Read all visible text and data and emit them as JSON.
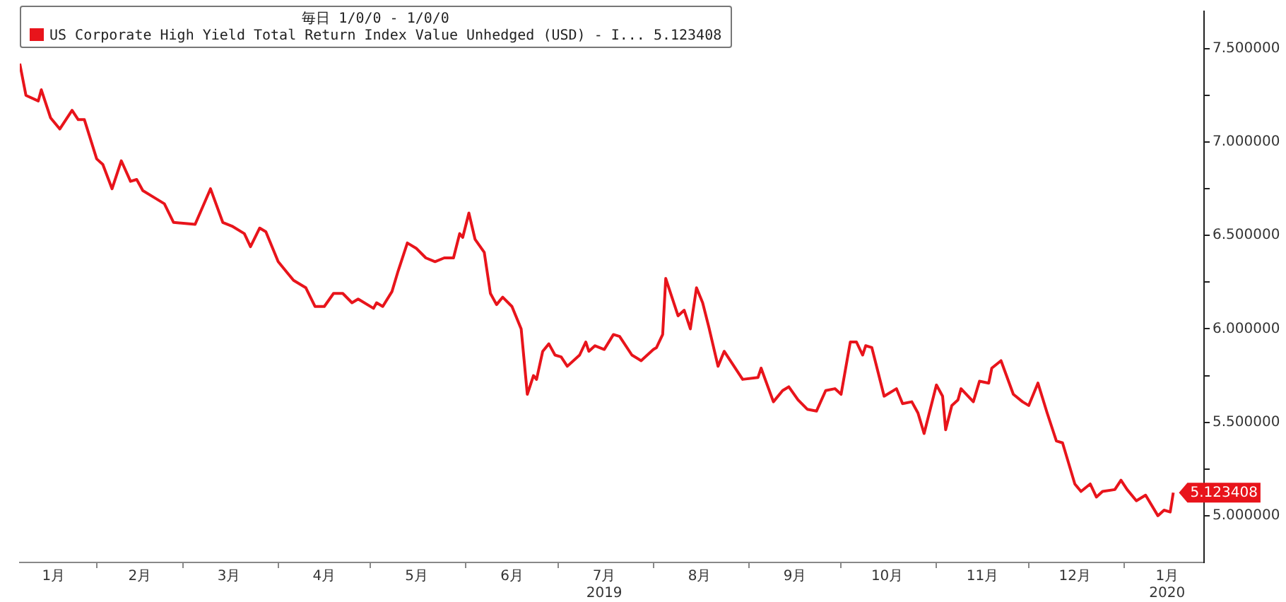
{
  "chart_data": {
    "type": "line",
    "legend_title": "毎日 1/0/0 - 1/0/0",
    "legend": "top left",
    "grid": false,
    "marker": "none",
    "line_style": "solid",
    "series": [
      {
        "name": "US Corporate High Yield Total Return Index Value Unhedged (USD) - I... 5.123408",
        "color": "#e8141b",
        "x": [
          "2019-01-07",
          "2019-01-09",
          "2019-01-13",
          "2019-01-14",
          "2019-01-17",
          "2019-01-20",
          "2019-01-24",
          "2019-01-26",
          "2019-01-28",
          "2019-02-01",
          "2019-02-03",
          "2019-02-06",
          "2019-02-09",
          "2019-02-12",
          "2019-02-14",
          "2019-02-16",
          "2019-02-20",
          "2019-02-23",
          "2019-02-26",
          "2019-03-05",
          "2019-03-10",
          "2019-03-14",
          "2019-03-17",
          "2019-03-21",
          "2019-03-23",
          "2019-03-26",
          "2019-03-28",
          "2019-04-01",
          "2019-04-04",
          "2019-04-06",
          "2019-04-10",
          "2019-04-13",
          "2019-04-16",
          "2019-04-19",
          "2019-04-22",
          "2019-04-25",
          "2019-04-27",
          "2019-05-02",
          "2019-05-03",
          "2019-05-05",
          "2019-05-08",
          "2019-05-10",
          "2019-05-13",
          "2019-05-16",
          "2019-05-19",
          "2019-05-22",
          "2019-05-25",
          "2019-05-28",
          "2019-05-30",
          "2019-05-31",
          "2019-06-02",
          "2019-06-04",
          "2019-06-07",
          "2019-06-09",
          "2019-06-11",
          "2019-06-13",
          "2019-06-16",
          "2019-06-19",
          "2019-06-21",
          "2019-06-23",
          "2019-06-24",
          "2019-06-26",
          "2019-06-28",
          "2019-06-30",
          "2019-07-02",
          "2019-07-04",
          "2019-07-08",
          "2019-07-10",
          "2019-07-11",
          "2019-07-13",
          "2019-07-16",
          "2019-07-19",
          "2019-07-21",
          "2019-07-25",
          "2019-07-28",
          "2019-08-01",
          "2019-08-02",
          "2019-08-04",
          "2019-08-05",
          "2019-08-09",
          "2019-08-11",
          "2019-08-13",
          "2019-08-15",
          "2019-08-17",
          "2019-08-19",
          "2019-08-22",
          "2019-08-24",
          "2019-08-26",
          "2019-08-30",
          "2019-09-04",
          "2019-09-05",
          "2019-09-09",
          "2019-09-12",
          "2019-09-14",
          "2019-09-17",
          "2019-09-20",
          "2019-09-23",
          "2019-09-26",
          "2019-09-29",
          "2019-10-01",
          "2019-10-04",
          "2019-10-06",
          "2019-10-08",
          "2019-10-09",
          "2019-10-11",
          "2019-10-15",
          "2019-10-19",
          "2019-10-21",
          "2019-10-24",
          "2019-10-26",
          "2019-10-28",
          "2019-11-01",
          "2019-11-03",
          "2019-11-04",
          "2019-11-06",
          "2019-11-08",
          "2019-11-09",
          "2019-11-13",
          "2019-11-15",
          "2019-11-18",
          "2019-11-19",
          "2019-11-22",
          "2019-11-26",
          "2019-11-29",
          "2019-12-01",
          "2019-12-04",
          "2019-12-07",
          "2019-12-10",
          "2019-12-12",
          "2019-12-16",
          "2019-12-18",
          "2019-12-21",
          "2019-12-23",
          "2019-12-25",
          "2019-12-29",
          "2019-12-31",
          "2020-01-02",
          "2020-01-05",
          "2020-01-08",
          "2020-01-12",
          "2020-01-14",
          "2020-01-16",
          "2020-01-17"
        ],
        "values": [
          7.42,
          7.25,
          7.22,
          7.28,
          7.13,
          7.07,
          7.17,
          7.12,
          7.12,
          6.91,
          6.88,
          6.75,
          6.9,
          6.79,
          6.8,
          6.74,
          6.7,
          6.67,
          6.57,
          6.56,
          6.75,
          6.57,
          6.55,
          6.51,
          6.44,
          6.54,
          6.52,
          6.36,
          6.3,
          6.26,
          6.22,
          6.12,
          6.12,
          6.19,
          6.19,
          6.14,
          6.16,
          6.11,
          6.14,
          6.12,
          6.2,
          6.31,
          6.46,
          6.43,
          6.38,
          6.36,
          6.38,
          6.38,
          6.51,
          6.49,
          6.62,
          6.48,
          6.41,
          6.19,
          6.13,
          6.17,
          6.12,
          6.0,
          5.65,
          5.75,
          5.73,
          5.88,
          5.92,
          5.86,
          5.85,
          5.8,
          5.86,
          5.93,
          5.88,
          5.91,
          5.89,
          5.97,
          5.96,
          5.86,
          5.83,
          5.89,
          5.9,
          5.97,
          6.27,
          6.07,
          6.1,
          6.0,
          6.22,
          6.14,
          6.01,
          5.8,
          5.88,
          5.83,
          5.73,
          5.74,
          5.79,
          5.61,
          5.67,
          5.69,
          5.62,
          5.57,
          5.56,
          5.67,
          5.68,
          5.65,
          5.93,
          5.93,
          5.86,
          5.91,
          5.9,
          5.64,
          5.68,
          5.6,
          5.61,
          5.55,
          5.44,
          5.7,
          5.64,
          5.46,
          5.59,
          5.62,
          5.68,
          5.61,
          5.72,
          5.71,
          5.79,
          5.83,
          5.65,
          5.61,
          5.59,
          5.71,
          5.55,
          5.4,
          5.39,
          5.17,
          5.13,
          5.17,
          5.1,
          5.13,
          5.14,
          5.19,
          5.14,
          5.08,
          5.11,
          5.0,
          5.03,
          5.02,
          5.123408
        ],
        "value_labels": [
          null,
          null,
          null,
          null,
          null,
          null,
          null,
          null,
          null,
          null,
          null,
          null,
          null,
          null,
          null,
          null,
          null,
          null,
          null,
          null,
          null,
          null,
          null,
          null,
          null,
          null,
          null,
          null,
          null,
          null,
          null,
          null,
          null,
          null,
          null,
          null,
          null,
          null,
          null,
          null,
          null,
          null,
          null,
          null,
          null,
          null,
          null,
          null,
          null,
          null,
          null,
          null,
          null,
          null,
          null,
          null,
          null,
          null,
          null,
          null,
          null,
          null,
          null,
          null,
          null,
          null,
          null,
          null,
          null,
          null,
          null,
          null,
          null,
          null,
          null,
          null,
          null,
          null,
          null,
          null,
          null,
          null,
          null,
          null,
          null,
          null,
          null,
          null,
          null,
          null,
          null,
          null,
          null,
          null,
          null,
          null,
          null,
          null,
          null,
          null,
          null,
          null,
          null,
          null,
          null,
          null,
          null,
          null,
          null,
          null,
          null,
          null,
          null,
          null,
          null,
          null,
          null,
          null,
          null,
          null,
          null,
          null,
          null,
          null,
          null,
          null,
          null,
          null,
          null,
          null,
          null,
          null,
          null,
          null,
          null,
          null,
          null,
          null,
          null,
          null,
          null,
          null,
          "5.123408"
        ]
      }
    ],
    "xlim": [
      "2019-01-07",
      "2020-01-27"
    ],
    "xticks": [
      {
        "value": "2019-01-18",
        "label": "1月"
      },
      {
        "value": "2019-02-01",
        "label": null
      },
      {
        "value": "2019-02-15",
        "label": "2月"
      },
      {
        "value": "2019-03-01",
        "label": null
      },
      {
        "value": "2019-03-16",
        "label": "3月"
      },
      {
        "value": "2019-04-01",
        "label": null
      },
      {
        "value": "2019-04-16",
        "label": "4月"
      },
      {
        "value": "2019-05-01",
        "label": null
      },
      {
        "value": "2019-05-16",
        "label": "5月"
      },
      {
        "value": "2019-06-01",
        "label": null
      },
      {
        "value": "2019-06-16",
        "label": "6月"
      },
      {
        "value": "2019-07-01",
        "label": null
      },
      {
        "value": "2019-07-16",
        "label": "7月\n2019"
      },
      {
        "value": "2019-08-01",
        "label": null
      },
      {
        "value": "2019-08-16",
        "label": "8月"
      },
      {
        "value": "2019-09-01",
        "label": null
      },
      {
        "value": "2019-09-16",
        "label": "9月"
      },
      {
        "value": "2019-10-01",
        "label": null
      },
      {
        "value": "2019-10-16",
        "label": "10月"
      },
      {
        "value": "2019-11-01",
        "label": null
      },
      {
        "value": "2019-11-16",
        "label": "11月"
      },
      {
        "value": "2019-12-01",
        "label": null
      },
      {
        "value": "2019-12-16",
        "label": "12月"
      },
      {
        "value": "2020-01-01",
        "label": null
      },
      {
        "value": "2020-01-15",
        "label": "1月\n2020"
      }
    ],
    "ylim": [
      4.75,
      7.7
    ],
    "yticks": [
      {
        "value": 5.0,
        "label": "5.000000"
      },
      {
        "value": 5.25,
        "label": null
      },
      {
        "value": 5.5,
        "label": "5.500000"
      },
      {
        "value": 5.75,
        "label": null
      },
      {
        "value": 6.0,
        "label": "6.000000"
      },
      {
        "value": 6.25,
        "label": null
      },
      {
        "value": 6.5,
        "label": "6.500000"
      },
      {
        "value": 6.75,
        "label": null
      },
      {
        "value": 7.0,
        "label": "7.000000"
      },
      {
        "value": 7.25,
        "label": null
      },
      {
        "value": 7.5,
        "label": "7.500000"
      }
    ]
  }
}
